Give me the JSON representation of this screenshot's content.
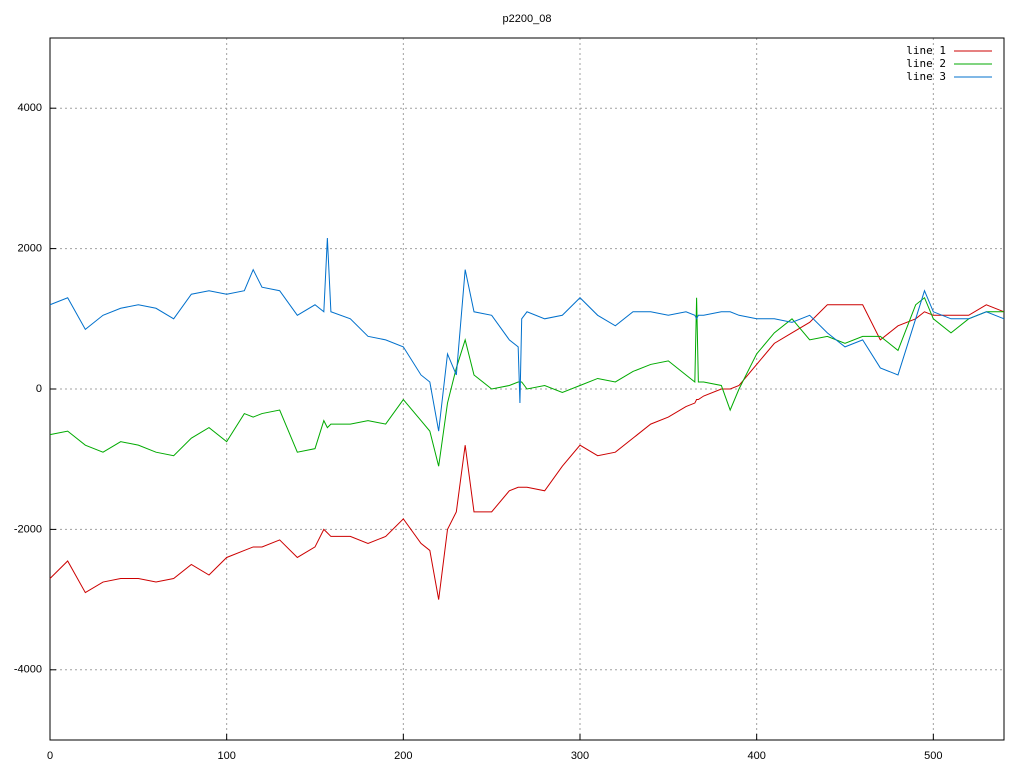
{
  "chart_data": {
    "type": "line",
    "title": "p2200_08",
    "x": [
      0,
      10,
      20,
      30,
      40,
      50,
      60,
      70,
      80,
      90,
      100,
      110,
      115,
      120,
      130,
      140,
      150,
      155,
      157,
      159,
      170,
      180,
      190,
      200,
      210,
      215,
      220,
      225,
      230,
      235,
      240,
      250,
      260,
      265,
      266,
      267,
      270,
      280,
      290,
      300,
      310,
      320,
      330,
      340,
      350,
      360,
      365,
      366,
      367,
      370,
      380,
      385,
      390,
      400,
      410,
      420,
      430,
      440,
      450,
      460,
      470,
      480,
      490,
      495,
      500,
      510,
      520,
      530,
      540
    ],
    "series": [
      {
        "name": "line 1",
        "color": "#cc0000",
        "values": [
          -2700,
          -2450,
          -2900,
          -2750,
          -2700,
          -2700,
          -2750,
          -2700,
          -2500,
          -2650,
          -2400,
          -2300,
          -2250,
          -2250,
          -2150,
          -2400,
          -2250,
          -2000,
          -2050,
          -2100,
          -2100,
          -2200,
          -2100,
          -1850,
          -2200,
          -2300,
          -3000,
          -2000,
          -1750,
          -800,
          -1750,
          -1750,
          -1450,
          -1400,
          -1400,
          -1400,
          -1400,
          -1450,
          -1100,
          -800,
          -950,
          -900,
          -700,
          -500,
          -400,
          -250,
          -200,
          -150,
          -150,
          -100,
          0,
          0,
          50,
          350,
          650,
          800,
          950,
          1200,
          1200,
          1200,
          700,
          900,
          1000,
          1100,
          1050,
          1050,
          1050,
          1200,
          1100
        ]
      },
      {
        "name": "line 2",
        "color": "#00aa00",
        "values": [
          -650,
          -600,
          -800,
          -900,
          -750,
          -800,
          -900,
          -950,
          -700,
          -550,
          -750,
          -350,
          -400,
          -350,
          -300,
          -900,
          -850,
          -450,
          -550,
          -500,
          -500,
          -450,
          -500,
          -150,
          -450,
          -600,
          -1100,
          -200,
          300,
          700,
          200,
          0,
          50,
          100,
          100,
          100,
          0,
          50,
          -50,
          50,
          150,
          100,
          250,
          350,
          400,
          200,
          100,
          1300,
          100,
          100,
          50,
          -300,
          0,
          500,
          800,
          1000,
          700,
          750,
          650,
          750,
          750,
          550,
          1200,
          1300,
          1000,
          800,
          1000,
          1100,
          1100
        ]
      },
      {
        "name": "line 3",
        "color": "#0070cc",
        "values": [
          1200,
          1300,
          850,
          1050,
          1150,
          1200,
          1150,
          1000,
          1350,
          1400,
          1350,
          1400,
          1700,
          1450,
          1400,
          1050,
          1200,
          1100,
          2150,
          1100,
          1000,
          750,
          700,
          600,
          200,
          100,
          -600,
          500,
          200,
          1700,
          1100,
          1050,
          700,
          600,
          -200,
          1000,
          1100,
          1000,
          1050,
          1300,
          1050,
          900,
          1100,
          1100,
          1050,
          1100,
          1050,
          1000,
          1050,
          1050,
          1100,
          1100,
          1050,
          1000,
          1000,
          950,
          1050,
          800,
          600,
          700,
          300,
          200,
          1000,
          1400,
          1100,
          1000,
          1000,
          1100,
          1000
        ]
      }
    ],
    "xlim": [
      0,
      540
    ],
    "xticks": [
      0,
      100,
      200,
      300,
      400,
      500
    ],
    "ylim": [
      -5000,
      5000
    ],
    "yticks": [
      -4000,
      -2000,
      0,
      2000,
      4000
    ],
    "grid": true,
    "legend": "top-right"
  }
}
